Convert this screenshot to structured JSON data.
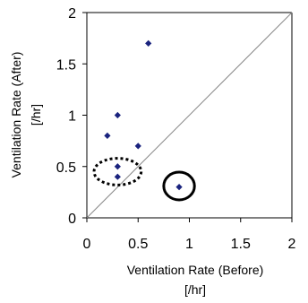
{
  "chart_data": {
    "type": "scatter",
    "title": "",
    "xlabel": "Ventilation Rate (Before)",
    "xlabel_unit": "[/hr]",
    "ylabel": "Ventilation Rate (After)",
    "ylabel_unit": "[/hr]",
    "xlim": [
      0,
      2
    ],
    "ylim": [
      0,
      2
    ],
    "x_ticks": [
      0,
      0.5,
      1,
      1.5,
      2
    ],
    "y_ticks": [
      0,
      0.5,
      1,
      1.5,
      2
    ],
    "x_tick_labels": [
      "0",
      "0.5",
      "1",
      "1.5",
      "2"
    ],
    "y_tick_labels": [
      "0",
      "0.5",
      "1",
      "1.5",
      "2"
    ],
    "grid": false,
    "legend": "none",
    "marker": "diamond",
    "marker_color": "#1a237e",
    "reference_line": {
      "type": "y=x",
      "color": "#888888"
    },
    "series": [
      {
        "x": [
          0.2,
          0.3,
          0.3,
          0.3,
          0.5,
          0.6,
          0.9
        ],
        "y": [
          0.8,
          1.0,
          0.5,
          0.4,
          0.7,
          1.7,
          0.3
        ]
      }
    ],
    "annotations": [
      {
        "shape": "ellipse",
        "style": "dotted",
        "center": [
          0.3,
          0.45
        ],
        "radii": [
          0.23,
          0.13
        ]
      },
      {
        "shape": "ellipse",
        "style": "solid",
        "center": [
          0.9,
          0.31
        ],
        "radii": [
          0.15,
          0.135
        ]
      }
    ]
  }
}
